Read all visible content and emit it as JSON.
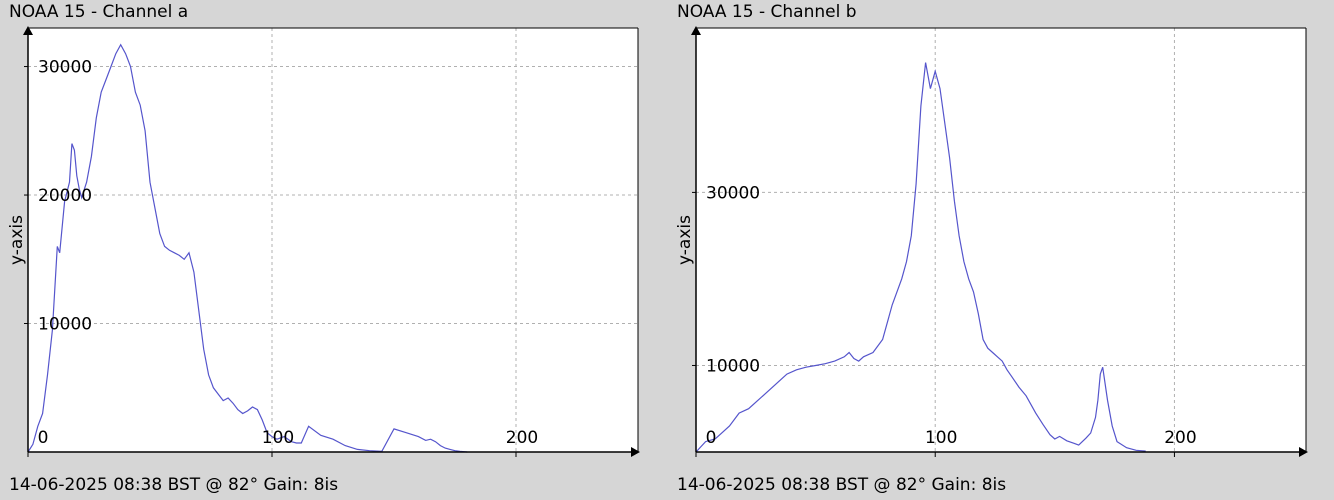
{
  "chart_data": [
    {
      "type": "line",
      "title": "NOAA 15 - Channel a",
      "footer": "14-06-2025 08:38 BST @ 82° Gain: 8is",
      "ylabel": "y-axis",
      "xlabel": "",
      "xlim": [
        0,
        250
      ],
      "ylim": [
        0,
        33000
      ],
      "xticks": [
        0,
        100,
        200
      ],
      "yticks": [
        10000,
        20000,
        30000
      ],
      "grid": true,
      "color": "#5555cc",
      "x": [
        0,
        2,
        4,
        6,
        8,
        10,
        12,
        13,
        15,
        17,
        18,
        19,
        20,
        21,
        22,
        23,
        24,
        26,
        28,
        30,
        32,
        34,
        36,
        38,
        40,
        42,
        44,
        46,
        48,
        50,
        52,
        54,
        56,
        58,
        60,
        62,
        64,
        66,
        68,
        70,
        72,
        74,
        76,
        78,
        80,
        82,
        84,
        86,
        88,
        90,
        92,
        94,
        96,
        98,
        100,
        102,
        105,
        108,
        110,
        112,
        115,
        120,
        125,
        130,
        135,
        140,
        145,
        150,
        155,
        160,
        163,
        165,
        167,
        169,
        171,
        173,
        175,
        177,
        180
      ],
      "values": [
        0,
        600,
        2000,
        3000,
        6000,
        9500,
        16000,
        15500,
        19500,
        21000,
        24000,
        23500,
        21500,
        20500,
        19800,
        20400,
        21000,
        23000,
        26000,
        28000,
        29000,
        30000,
        31000,
        31700,
        31000,
        30000,
        28000,
        27000,
        25000,
        21000,
        19000,
        17000,
        16000,
        15700,
        15500,
        15300,
        15000,
        15500,
        14000,
        11000,
        8000,
        6000,
        5000,
        4500,
        4000,
        4200,
        3800,
        3300,
        3000,
        3200,
        3500,
        3300,
        2500,
        1500,
        1200,
        1000,
        1200,
        800,
        700,
        700,
        2000,
        1300,
        1000,
        500,
        200,
        100,
        50,
        1800,
        1500,
        1200,
        900,
        1000,
        800,
        500,
        300,
        200,
        100,
        50,
        0
      ]
    },
    {
      "type": "line",
      "title": "NOAA 15 - Channel b",
      "footer": "14-06-2025 08:38 BST @ 82° Gain: 8is",
      "ylabel": "y-axis",
      "xlabel": "",
      "xlim": [
        0,
        255
      ],
      "ylim": [
        0,
        49000
      ],
      "xticks": [
        0,
        100,
        200
      ],
      "yticks": [
        10000,
        30000
      ],
      "grid": true,
      "color": "#5555cc",
      "x": [
        0,
        4,
        8,
        10,
        14,
        18,
        22,
        26,
        30,
        34,
        38,
        42,
        46,
        50,
        54,
        58,
        62,
        64,
        66,
        68,
        70,
        74,
        78,
        82,
        86,
        88,
        90,
        92,
        94,
        96,
        98,
        100,
        102,
        104,
        106,
        108,
        110,
        112,
        114,
        116,
        118,
        120,
        122,
        124,
        126,
        128,
        130,
        132,
        135,
        138,
        140,
        142,
        145,
        148,
        150,
        152,
        155,
        158,
        160,
        163,
        165,
        167,
        168,
        169,
        170,
        172,
        174,
        176,
        180,
        184,
        188
      ],
      "values": [
        0,
        1200,
        1500,
        2000,
        3000,
        4500,
        5000,
        6000,
        7000,
        8000,
        9000,
        9500,
        9800,
        10000,
        10200,
        10500,
        11000,
        11500,
        10800,
        10500,
        11000,
        11500,
        13000,
        17000,
        20000,
        22000,
        25000,
        31000,
        40000,
        45000,
        42000,
        44000,
        42000,
        38000,
        34000,
        29000,
        25000,
        22000,
        20000,
        18500,
        16000,
        13000,
        12000,
        11500,
        11000,
        10500,
        9500,
        8700,
        7500,
        6500,
        5500,
        4500,
        3200,
        2000,
        1500,
        1800,
        1300,
        1000,
        800,
        1600,
        2200,
        4000,
        6000,
        9000,
        9800,
        6000,
        3000,
        1200,
        500,
        200,
        100
      ]
    }
  ]
}
